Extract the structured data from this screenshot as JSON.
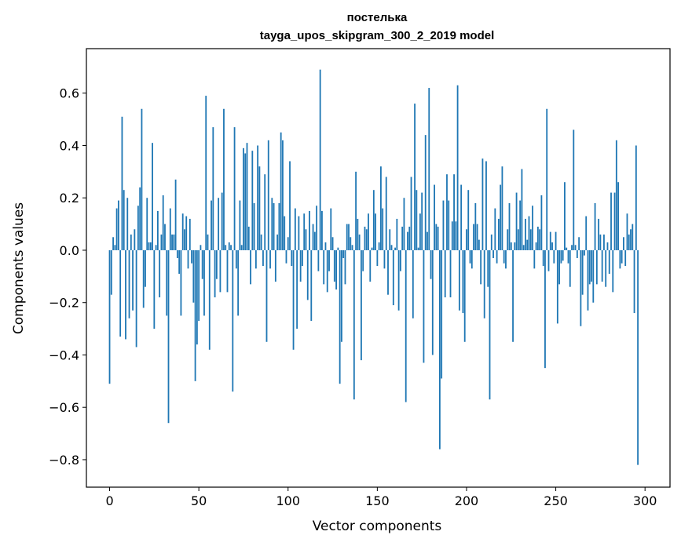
{
  "chart_data": {
    "type": "bar",
    "title": "постелька",
    "subtitle": "tayga_upos_skipgram_300_2_2019 model",
    "xlabel": "Vector components",
    "ylabel": "Components values",
    "xlim": [
      -13,
      314
    ],
    "ylim": [
      -0.905,
      0.77
    ],
    "xticks": [
      0,
      50,
      100,
      150,
      200,
      250,
      300
    ],
    "xtick_labels": [
      "0",
      "50",
      "100",
      "150",
      "200",
      "250",
      "300"
    ],
    "yticks": [
      -0.8,
      -0.6,
      -0.4,
      -0.2,
      0.0,
      0.2,
      0.4,
      0.6
    ],
    "ytick_labels": [
      "−0.8",
      "−0.6",
      "−0.4",
      "−0.2",
      "0.0",
      "0.2",
      "0.4",
      "0.6"
    ],
    "bar_color": "#1f77b4",
    "grid": false,
    "values": [
      -0.51,
      -0.17,
      0.05,
      0.02,
      0.16,
      0.19,
      -0.33,
      0.51,
      0.23,
      -0.34,
      0.2,
      -0.26,
      0.06,
      -0.23,
      0.08,
      -0.37,
      0.17,
      0.24,
      0.54,
      -0.22,
      -0.14,
      0.2,
      0.03,
      0.03,
      0.41,
      -0.3,
      0.02,
      0.15,
      -0.18,
      0.06,
      0.21,
      0.1,
      -0.25,
      -0.66,
      0.16,
      0.06,
      0.06,
      0.27,
      -0.03,
      -0.09,
      -0.25,
      0.14,
      0.08,
      0.13,
      -0.07,
      0.12,
      -0.05,
      -0.2,
      -0.5,
      -0.36,
      -0.27,
      0.02,
      -0.11,
      -0.25,
      0.59,
      0.06,
      -0.38,
      0.19,
      0.47,
      -0.18,
      -0.11,
      0.2,
      -0.16,
      0.22,
      0.54,
      0.02,
      -0.16,
      0.03,
      0.02,
      -0.54,
      0.47,
      -0.07,
      -0.25,
      0.19,
      0.02,
      0.39,
      0.37,
      0.41,
      0.09,
      -0.13,
      0.38,
      0.18,
      -0.07,
      0.4,
      0.32,
      0.06,
      -0.06,
      0.29,
      -0.35,
      0.42,
      -0.07,
      0.2,
      0.18,
      -0.12,
      0.06,
      0.18,
      0.45,
      0.42,
      0.13,
      -0.05,
      0.05,
      0.34,
      -0.06,
      -0.38,
      0.16,
      -0.3,
      0.13,
      -0.12,
      -0.06,
      0.14,
      0.08,
      -0.19,
      0.15,
      -0.27,
      0.1,
      0.07,
      0.17,
      -0.08,
      0.69,
      0.15,
      -0.13,
      0.03,
      -0.16,
      -0.08,
      0.16,
      0.05,
      -0.12,
      -0.15,
      0.01,
      -0.51,
      -0.35,
      -0.03,
      -0.13,
      0.1,
      0.1,
      0.05,
      0.02,
      -0.57,
      0.3,
      0.12,
      0.06,
      -0.42,
      -0.08,
      0.09,
      0.08,
      0.14,
      -0.12,
      0.01,
      0.23,
      0.14,
      -0.06,
      0.03,
      0.32,
      0.16,
      -0.07,
      0.28,
      -0.17,
      0.08,
      0.02,
      -0.21,
      0.01,
      0.12,
      -0.23,
      -0.08,
      0.09,
      0.2,
      -0.58,
      0.07,
      0.09,
      0.28,
      -0.26,
      0.56,
      0.23,
      0.01,
      0.14,
      0.22,
      -0.43,
      0.44,
      0.07,
      0.62,
      -0.11,
      -0.4,
      0.25,
      0.1,
      0.09,
      -0.76,
      -0.49,
      0.19,
      -0.18,
      0.29,
      0.19,
      -0.18,
      0.11,
      0.29,
      0.11,
      0.63,
      -0.23,
      0.25,
      -0.24,
      -0.35,
      0.08,
      0.23,
      -0.05,
      -0.07,
      0.1,
      0.18,
      0.1,
      0.04,
      -0.13,
      0.35,
      -0.26,
      0.34,
      -0.14,
      -0.57,
      0.06,
      -0.03,
      0.16,
      -0.05,
      0.12,
      0.25,
      0.32,
      -0.05,
      -0.07,
      0.08,
      0.18,
      0.03,
      -0.35,
      0.03,
      0.22,
      0.08,
      0.19,
      0.31,
      0.02,
      0.12,
      0.04,
      0.13,
      0.08,
      0.17,
      -0.07,
      0.03,
      0.09,
      0.08,
      0.21,
      -0.06,
      -0.45,
      0.54,
      -0.08,
      0.07,
      0.03,
      -0.05,
      0.07,
      -0.28,
      -0.13,
      -0.05,
      -0.04,
      0.26,
      0.01,
      -0.05,
      -0.14,
      0.02,
      0.46,
      0.02,
      -0.03,
      0.05,
      -0.29,
      -0.17,
      -0.02,
      0.13,
      -0.23,
      -0.13,
      -0.12,
      -0.2,
      0.18,
      -0.13,
      0.12,
      0.06,
      -0.12,
      0.06,
      -0.14,
      0.03,
      -0.09,
      0.22,
      -0.16,
      0.22,
      0.42,
      0.26,
      -0.07,
      -0.05,
      0.05,
      -0.06,
      0.14,
      0.06,
      0.08,
      0.1,
      -0.24,
      0.4,
      -0.82
    ]
  }
}
